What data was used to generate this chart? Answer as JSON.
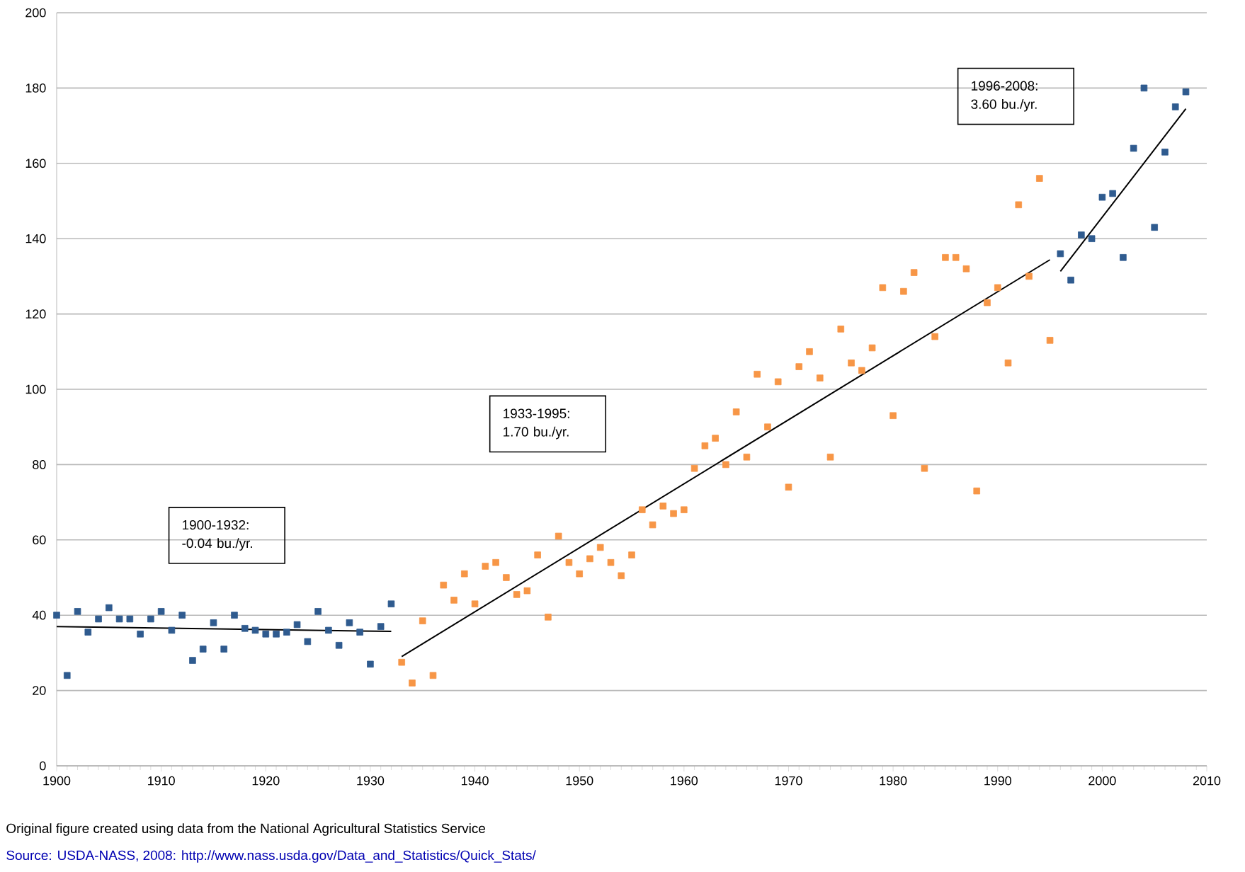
{
  "chart_data": {
    "type": "scatter",
    "marker": "square",
    "grid": "y",
    "xlim": [
      1900,
      2010
    ],
    "xticks": [
      1900,
      1910,
      1920,
      1930,
      1940,
      1950,
      1960,
      1970,
      1980,
      1990,
      2000,
      2010
    ],
    "ylim": [
      0,
      200
    ],
    "yticks": [
      0,
      20,
      40,
      60,
      80,
      100,
      120,
      140,
      160,
      180,
      200
    ],
    "series": [
      {
        "color": "#2f5b8f",
        "x": [
          1900,
          1901,
          1902,
          1903,
          1904,
          1905,
          1906,
          1907,
          1908,
          1909,
          1910,
          1911,
          1912,
          1913,
          1914,
          1915,
          1916,
          1917,
          1918,
          1919,
          1920,
          1921,
          1922,
          1923,
          1924,
          1925,
          1926,
          1927,
          1928,
          1929,
          1930,
          1931,
          1932
        ],
        "values": [
          40,
          24,
          41,
          35.5,
          39,
          42,
          39,
          39,
          35,
          39,
          41,
          36,
          40,
          28,
          31,
          38,
          31,
          40,
          36.5,
          36,
          35,
          35,
          35.5,
          37.5,
          33,
          41,
          36,
          32,
          38,
          35.5,
          27,
          37,
          43
        ]
      },
      {
        "color": "#f79646",
        "x": [
          1933,
          1934,
          1935,
          1936,
          1937,
          1938,
          1939,
          1940,
          1941,
          1942,
          1943,
          1944,
          1945,
          1946,
          1947,
          1948,
          1949,
          1950,
          1951,
          1952,
          1953,
          1954,
          1955,
          1956,
          1957,
          1958,
          1959,
          1960,
          1961,
          1962,
          1963,
          1964,
          1965,
          1966,
          1967,
          1968,
          1969,
          1970,
          1971,
          1972,
          1973,
          1974,
          1975,
          1976,
          1977,
          1978,
          1979,
          1980,
          1981,
          1982,
          1983,
          1984,
          1985,
          1986,
          1987,
          1988,
          1989,
          1990,
          1991,
          1992,
          1993,
          1994,
          1995
        ],
        "values": [
          27.5,
          22,
          38.5,
          24,
          48,
          44,
          51,
          43,
          53,
          54,
          50,
          45.5,
          46.5,
          56,
          39.5,
          61,
          54,
          51,
          55,
          58,
          54,
          50.5,
          56,
          68,
          64,
          69,
          67,
          68,
          79,
          85,
          87,
          80,
          94,
          82,
          104,
          90,
          102,
          74,
          106,
          110,
          103,
          82,
          116,
          107,
          105,
          111,
          127,
          93,
          126,
          131,
          79,
          114,
          135,
          135,
          132,
          73,
          123,
          127,
          107,
          149,
          130,
          156,
          113
        ]
      },
      {
        "color": "#2f5b8f",
        "x": [
          1996,
          1997,
          1998,
          1999,
          2000,
          2001,
          2002,
          2003,
          2004,
          2005,
          2006,
          2007,
          2008
        ],
        "values": [
          136,
          129,
          141,
          140,
          151,
          152,
          135,
          164,
          180,
          143,
          163,
          175,
          179
        ]
      },
      {
        "type": "line",
        "marker": "none",
        "color": "#000000",
        "x": [
          1900,
          1932
        ],
        "values": [
          37,
          35.7
        ]
      },
      {
        "type": "line",
        "marker": "none",
        "color": "#000000",
        "x": [
          1933,
          1995
        ],
        "values": [
          29,
          134.4
        ]
      },
      {
        "type": "line",
        "marker": "none",
        "color": "#000000",
        "x": [
          1996,
          2008
        ],
        "values": [
          131.3,
          174.5
        ]
      }
    ],
    "annotations": [
      "1900-1932: -0.04 bu./yr.",
      "1933-1995: 1.70 bu./yr.",
      "1996-2008: 3.60 bu./yr.",
      "Original figure created using data from the National Agricultural Statistics Service",
      "Source: USDA-NASS, 2008: http://www.nass.usda.gov/Data_and_Statistics/Quick_Stats/"
    ]
  }
}
